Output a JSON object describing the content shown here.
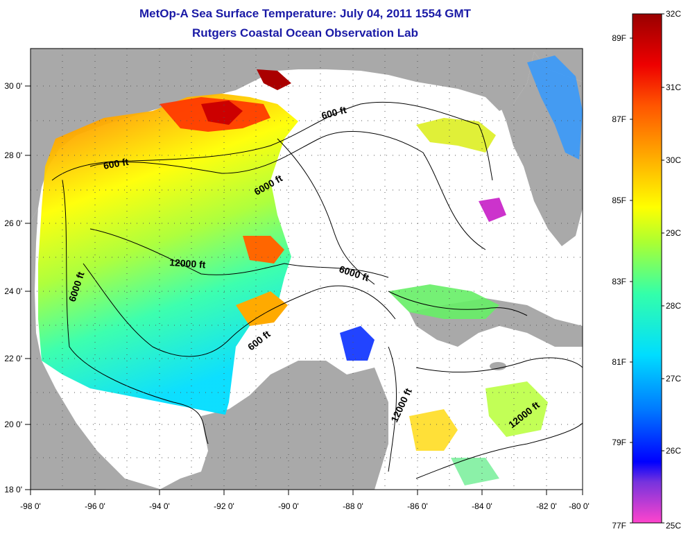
{
  "title": {
    "line1": "MetOp-A Sea Surface Temperature:  July 04, 2011 1554 GMT",
    "line2": "Rutgers Coastal Ocean Observation Lab"
  },
  "map": {
    "land_color": "#a9a9a9",
    "nodata_color": "#ffffff",
    "lon_ticks": [
      "-98 0'",
      "-96 0'",
      "-94 0'",
      "-92 0'",
      "-90 0'",
      "-88 0'",
      "-86 0'",
      "-84 0'",
      "-82 0'",
      "-80 0'"
    ],
    "lat_ticks": [
      "30 0'",
      "28 0'",
      "26 0'",
      "24 0'",
      "22 0'",
      "20 0'",
      "18 0'"
    ],
    "contour_labels": [
      "600 ft",
      "600 ft",
      "6000 ft",
      "6000 ft",
      "12000 ft",
      "6000 ft",
      "600 ft",
      "12000 ft",
      "12000 ft"
    ]
  },
  "colorbar": {
    "celsius_labels": [
      "32C",
      "31C",
      "30C",
      "29C",
      "28C",
      "27C",
      "26C",
      "25C"
    ],
    "fahrenheit_labels": [
      "89F",
      "87F",
      "85F",
      "83F",
      "81F",
      "79F",
      "77F"
    ],
    "colors": [
      "#ff44cc",
      "#7733dd",
      "#0000ff",
      "#0077ff",
      "#00ddff",
      "#33ffaa",
      "#aaff33",
      "#ffff00",
      "#ffaa00",
      "#ff5500",
      "#ee0000",
      "#990000"
    ]
  }
}
